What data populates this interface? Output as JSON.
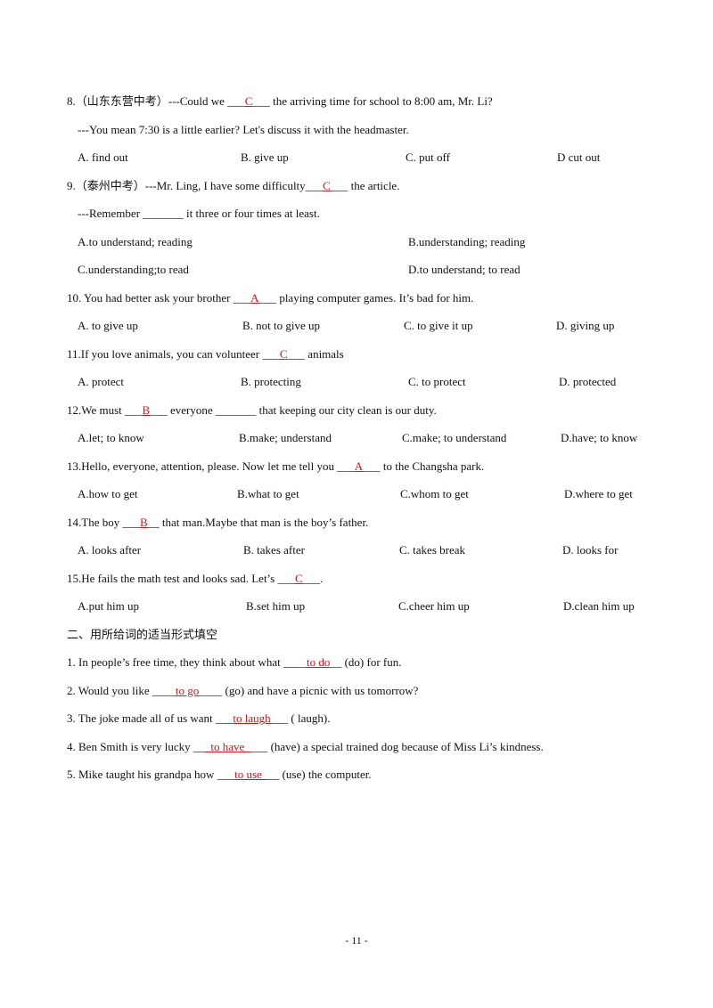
{
  "questions": [
    {
      "stem": [
        "8.（山东东营中考）---Could we ___",
        "C",
        "___ the arriving time for school to 8:00 am, Mr. Li?"
      ],
      "line2": "---You mean 7:30 is a little earlier? Let's discuss it with the headmaster.",
      "options": [
        "A. find out",
        "B. give up",
        "C. put off",
        "D cut out"
      ]
    },
    {
      "stem": [
        "9.（泰州中考）---Mr. Ling, I have some difficulty___",
        "C",
        "___ the article."
      ],
      "line2": "---Remember _______ it three or four times at least.",
      "options": [
        "A.to understand; reading",
        "B.understanding; reading",
        "C.understanding;to read",
        "D.to understand; to read"
      ]
    },
    {
      "stem": [
        "10. You had better ask your brother ___",
        "A",
        "___ playing computer games. It’s bad for him."
      ],
      "options": [
        "A. to give up",
        "B. not to give up",
        "C. to give it up",
        "D. giving up"
      ]
    },
    {
      "stem": [
        "11.If you love animals, you can volunteer ___",
        "C",
        "___ animals"
      ],
      "options": [
        "A. protect",
        "B. protecting",
        "C. to protect",
        "D. protected"
      ]
    },
    {
      "stem": [
        "12.We must ___",
        "B",
        "___ everyone _______ that keeping our city clean is our duty."
      ],
      "options": [
        "A.let; to know",
        "B.make; understand",
        "C.make; to understand",
        "D.have; to know"
      ]
    },
    {
      "stem": [
        "13.Hello, everyone, attention, please. Now let me tell you ___",
        "A",
        "___ to the Changsha park."
      ],
      "options": [
        "A.how to get",
        "B.what to get",
        "C.whom to get",
        "D.where to get"
      ]
    },
    {
      "stem": [
        "14.The boy ___",
        "B",
        "__ that man.Maybe that man is the boy’s father."
      ],
      "options": [
        "A. looks after",
        "B. takes after",
        "C. takes break",
        "D. looks for"
      ]
    },
    {
      "stem": [
        "15.He fails the math test and looks sad. Let’s ___",
        "C",
        "___."
      ],
      "options": [
        "A.put him up",
        "B.set him up",
        "C.cheer him up",
        "D.clean him up"
      ]
    }
  ],
  "section_title": "二、用所给词的适当形式填空",
  "fill_items": [
    [
      "1. In people’s free time, they think about what ____",
      "to do",
      "__ (do) for fun."
    ],
    [
      "2. Would you like ____",
      "to go",
      "____ (go) and have a picnic with us tomorrow?"
    ],
    [
      "3. The joke made all of us want ___",
      "to laugh",
      "___ ( laugh)."
    ],
    [
      "4. Ben Smith is very lucky __",
      "_to have_",
      "___ (have) a special trained dog because of Miss Li’s kindness."
    ],
    [
      "5. Mike taught his grandpa how ___",
      "to use_",
      "__ (use) the computer."
    ]
  ],
  "page_number": "- 11 -"
}
